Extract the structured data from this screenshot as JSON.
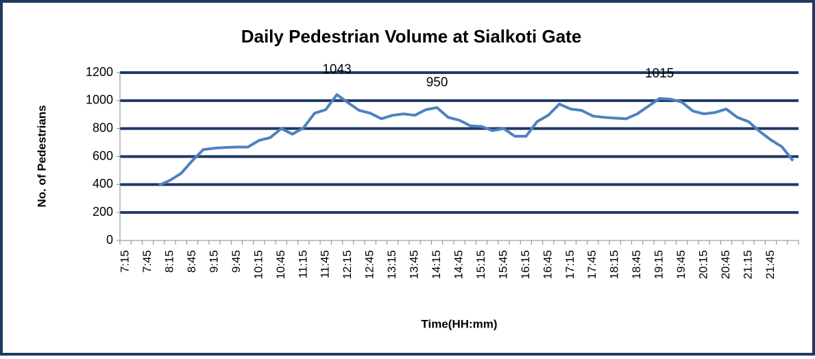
{
  "chart_data": {
    "type": "line",
    "title": "Daily Pedestrian Volume at Sialkoti Gate",
    "x_label": "Time(HH:mm)",
    "y_label": "No. of Pedestrians",
    "categories": [
      "7:15",
      null,
      "7:45",
      null,
      "8:15",
      null,
      "8:45",
      null,
      "9:15",
      null,
      "9:45",
      null,
      "10:15",
      null,
      "10:45",
      null,
      "11:15",
      null,
      "11:45",
      null,
      "12:15",
      null,
      "12:45",
      null,
      "13:15",
      null,
      "13:45",
      null,
      "14:15",
      null,
      "14:45",
      null,
      "15:15",
      null,
      "15:45",
      null,
      "16:15",
      null,
      "16:45",
      null,
      "17:15",
      null,
      "17:45",
      null,
      "18:15",
      null,
      "18:45",
      null,
      "19:15",
      null,
      "19:45",
      null,
      "20:15",
      null,
      "20:45",
      null,
      "21:15",
      null,
      "21:45",
      null,
      null
    ],
    "series": [
      {
        "name": "Pedestrians",
        "color": "#4f81bd",
        "values": [
          null,
          null,
          null,
          395,
          430,
          480,
          570,
          650,
          660,
          665,
          668,
          668,
          715,
          735,
          800,
          760,
          805,
          910,
          935,
          1043,
          985,
          930,
          910,
          870,
          895,
          905,
          895,
          935,
          950,
          880,
          860,
          820,
          815,
          785,
          800,
          745,
          745,
          850,
          895,
          975,
          940,
          930,
          890,
          880,
          875,
          870,
          905,
          960,
          1015,
          1010,
          990,
          925,
          905,
          915,
          940,
          880,
          850,
          780,
          720,
          670,
          570
        ],
        "value_labels": [
          null,
          null,
          null,
          null,
          null,
          null,
          null,
          null,
          null,
          null,
          null,
          null,
          null,
          null,
          null,
          null,
          null,
          null,
          null,
          "1043",
          null,
          null,
          null,
          null,
          null,
          null,
          null,
          null,
          "950",
          null,
          null,
          null,
          null,
          null,
          null,
          null,
          null,
          null,
          null,
          null,
          null,
          null,
          null,
          null,
          null,
          null,
          null,
          null,
          "1015",
          null,
          null,
          null,
          null,
          null,
          null,
          null,
          null,
          null,
          null,
          null,
          null
        ]
      }
    ],
    "ylim": [
      0,
      1200
    ],
    "yticks": [
      0,
      200,
      400,
      600,
      800,
      1000,
      1200
    ],
    "grid": true,
    "grid_color": "#1f3864"
  }
}
